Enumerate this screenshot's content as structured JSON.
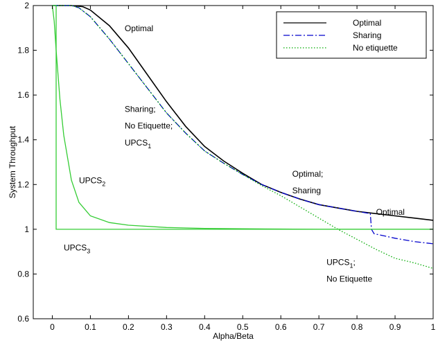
{
  "chart_data": {
    "type": "line",
    "xlabel": "Alpha/Beta",
    "ylabel": "System Throughput",
    "xlim": [
      -0.05,
      1.0
    ],
    "ylim": [
      0.6,
      2.0
    ],
    "xticks": [
      "0",
      "0.1",
      "0.2",
      "0.3",
      "0.4",
      "0.5",
      "0.6",
      "0.7",
      "0.8",
      "0.9",
      "1"
    ],
    "yticks": [
      "0.6",
      "0.8",
      "1",
      "1.2",
      "1.4",
      "1.6",
      "1.8",
      "2"
    ],
    "grid": false,
    "legend_position": "top-right",
    "legend": [
      {
        "label": "Optimal",
        "color": "#000000",
        "style": "solid"
      },
      {
        "label": "Sharing",
        "color": "#0000cc",
        "style": "dashdot"
      },
      {
        "label": "No etiquette",
        "color": "#00aa00",
        "style": "dotted"
      }
    ],
    "series": [
      {
        "name": "Optimal",
        "color": "#000000",
        "style": "solid",
        "x": [
          0,
          0.05,
          0.08,
          0.1,
          0.15,
          0.2,
          0.25,
          0.3,
          0.35,
          0.4,
          0.45,
          0.5,
          0.55,
          0.6,
          0.65,
          0.7,
          0.75,
          0.8,
          0.85,
          0.9,
          0.95,
          1.0
        ],
        "y": [
          2.0,
          2.0,
          1.995,
          1.98,
          1.91,
          1.81,
          1.69,
          1.57,
          1.46,
          1.37,
          1.305,
          1.25,
          1.2,
          1.165,
          1.135,
          1.11,
          1.095,
          1.08,
          1.07,
          1.06,
          1.05,
          1.04
        ]
      },
      {
        "name": "Sharing",
        "color": "#0000cc",
        "style": "dashdot",
        "x": [
          0,
          0.05,
          0.07,
          0.1,
          0.15,
          0.2,
          0.25,
          0.3,
          0.35,
          0.4,
          0.45,
          0.5,
          0.55,
          0.6,
          0.65,
          0.7,
          0.75,
          0.8,
          0.835,
          0.838,
          0.845,
          0.9,
          0.95,
          1.0
        ],
        "y": [
          2.0,
          2.0,
          1.99,
          1.95,
          1.85,
          1.74,
          1.63,
          1.52,
          1.43,
          1.35,
          1.295,
          1.245,
          1.2,
          1.165,
          1.135,
          1.11,
          1.095,
          1.08,
          1.07,
          1.0,
          0.98,
          0.96,
          0.945,
          0.935
        ]
      },
      {
        "name": "UPCS1; No Etiquette",
        "color": "#00aa00",
        "style": "dotted",
        "x": [
          0,
          0.05,
          0.07,
          0.1,
          0.15,
          0.2,
          0.25,
          0.3,
          0.35,
          0.4,
          0.45,
          0.5,
          0.55,
          0.6,
          0.65,
          0.7,
          0.75,
          0.8,
          0.85,
          0.9,
          0.95,
          1.0
        ],
        "y": [
          2.0,
          2.0,
          1.99,
          1.95,
          1.85,
          1.74,
          1.63,
          1.52,
          1.43,
          1.35,
          1.295,
          1.245,
          1.195,
          1.15,
          1.1,
          1.05,
          1.0,
          0.955,
          0.91,
          0.87,
          0.85,
          0.825
        ]
      },
      {
        "name": "UPCS2",
        "color": "#33cc33",
        "style": "solid",
        "x": [
          0,
          0.005,
          0.01,
          0.02,
          0.03,
          0.05,
          0.07,
          0.1,
          0.15,
          0.2,
          0.3,
          0.4,
          0.5,
          0.6,
          0.7,
          0.8,
          0.9,
          1.0
        ],
        "y": [
          2.0,
          1.93,
          1.8,
          1.58,
          1.42,
          1.22,
          1.12,
          1.06,
          1.03,
          1.018,
          1.008,
          1.004,
          1.002,
          1.001,
          1.0,
          1.0,
          1.0,
          1.0
        ]
      },
      {
        "name": "UPCS3",
        "color": "#33cc33",
        "style": "solid",
        "x": [
          0,
          0.01,
          0.01,
          1.0
        ],
        "y": [
          2.0,
          2.0,
          1.0,
          1.0
        ]
      }
    ],
    "annotations": [
      {
        "text": "Optimal",
        "x": 0.19,
        "y": 1.885
      },
      {
        "text": "Sharing;",
        "x": 0.19,
        "y": 1.525
      },
      {
        "text": "No Etiquette;",
        "x": 0.19,
        "y": 1.45
      },
      {
        "text": "UPCS",
        "sub": "1",
        "x": 0.19,
        "y": 1.375
      },
      {
        "text": "UPCS",
        "sub": "2",
        "x": 0.07,
        "y": 1.205
      },
      {
        "text": "Optimal;",
        "x": 0.63,
        "y": 1.235
      },
      {
        "text": "Sharing",
        "x": 0.63,
        "y": 1.16
      },
      {
        "text": "Optimal",
        "x": 0.85,
        "y": 1.065
      },
      {
        "text": "UPCS",
        "sub": "3",
        "x": 0.03,
        "y": 0.905
      },
      {
        "text": "UPCS",
        "sub": "1",
        "suffix": ";",
        "x": 0.72,
        "y": 0.84
      },
      {
        "text": "No Etiquette",
        "x": 0.72,
        "y": 0.765
      }
    ]
  }
}
